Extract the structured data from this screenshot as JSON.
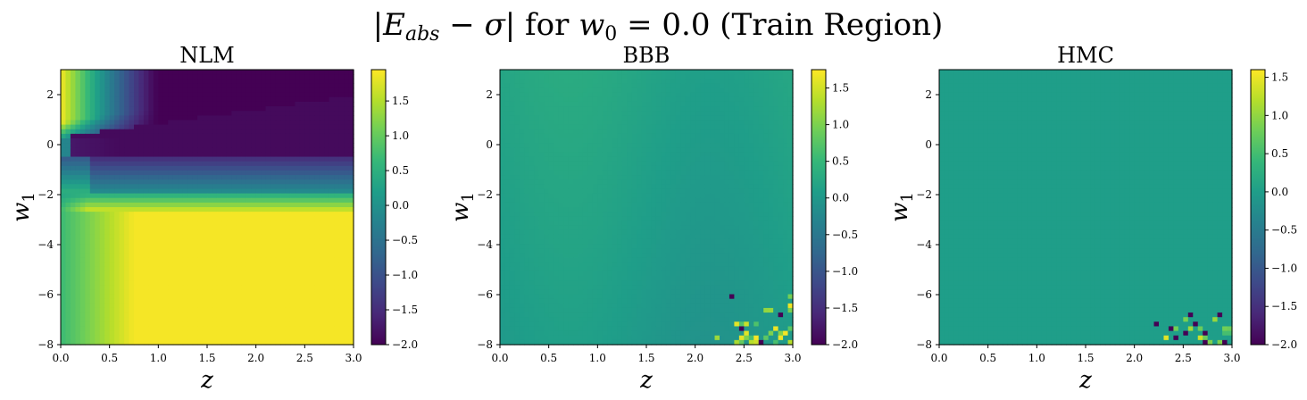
{
  "figure": {
    "title_parts": [
      "|",
      "E",
      "abs",
      " − ",
      "σ",
      "| for ",
      "w",
      "0",
      " = 0.0 (Train Region)"
    ]
  },
  "colors": {
    "colormap": "viridis",
    "viridis_stops": [
      "#440154",
      "#482878",
      "#3e4989",
      "#31688e",
      "#26828e",
      "#1f9e89",
      "#35b779",
      "#6ece58",
      "#b5de2b",
      "#fde725"
    ]
  },
  "chart_data": [
    {
      "type": "heatmap",
      "title": "NLM",
      "xlabel": "z",
      "ylabel_parts": [
        "w",
        "1"
      ],
      "xlim": [
        0.0,
        3.0
      ],
      "ylim": [
        -8,
        3
      ],
      "xticks": [
        "0.0",
        "0.5",
        "1.0",
        "1.5",
        "2.0",
        "2.5",
        "3.0"
      ],
      "yticks": [
        "2",
        "0",
        "−2",
        "−4",
        "−6",
        "−8"
      ],
      "colorbar_range": [
        -2.0,
        1.95
      ],
      "colorbar_ticks": [
        "1.5",
        "1.0",
        "0.5",
        "0.0",
        "−0.5",
        "−1.0",
        "−1.5",
        "−2.0"
      ],
      "pattern": "nlm"
    },
    {
      "type": "heatmap",
      "title": "BBB",
      "xlabel": "z",
      "ylabel_parts": [
        "w",
        "1"
      ],
      "xlim": [
        0.0,
        3.0
      ],
      "ylim": [
        -8,
        3
      ],
      "xticks": [
        "0.0",
        "0.5",
        "1.0",
        "1.5",
        "2.0",
        "2.5",
        "3.0"
      ],
      "yticks": [
        "2",
        "0",
        "−2",
        "−4",
        "−6",
        "−8"
      ],
      "colorbar_range": [
        -2.0,
        1.75
      ],
      "colorbar_ticks": [
        "1.5",
        "1.0",
        "0.5",
        "0.0",
        "−0.5",
        "−1.0",
        "−1.5",
        "−2.0"
      ],
      "pattern": "bbb"
    },
    {
      "type": "heatmap",
      "title": "HMC",
      "xlabel": "z",
      "ylabel_parts": [
        "w",
        "1"
      ],
      "xlim": [
        0.0,
        3.0
      ],
      "ylim": [
        -8,
        3
      ],
      "xticks": [
        "0.0",
        "0.5",
        "1.0",
        "1.5",
        "2.0",
        "2.5",
        "3.0"
      ],
      "yticks": [
        "2",
        "0",
        "−2",
        "−4",
        "−6",
        "−8"
      ],
      "colorbar_range": [
        -2.0,
        1.6
      ],
      "colorbar_ticks": [
        "1.5",
        "1.0",
        "0.5",
        "0.0",
        "−0.5",
        "−1.0",
        "−1.5",
        "−2.0"
      ],
      "pattern": "hmc"
    }
  ]
}
